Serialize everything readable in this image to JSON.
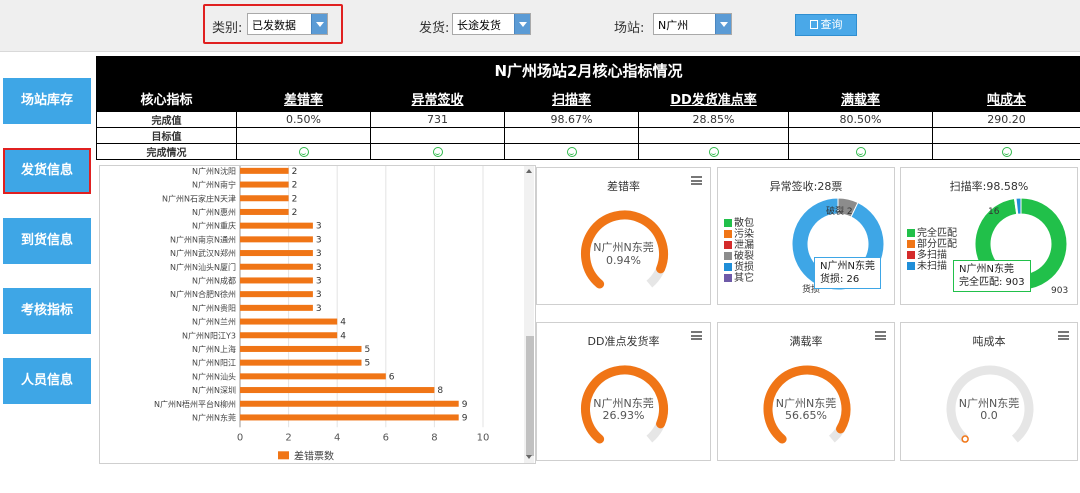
{
  "filters": {
    "category_label": "类别:",
    "category_value": "已发数据",
    "shipping_label": "发货:",
    "shipping_value": "长途发货",
    "station_label": "场站:",
    "station_value": "N广州",
    "query_label": "查询"
  },
  "nav": {
    "items": [
      {
        "label": "场站库存"
      },
      {
        "label": "发货信息"
      },
      {
        "label": "到货信息"
      },
      {
        "label": "考核指标"
      },
      {
        "label": "人员信息"
      }
    ],
    "active": "发货信息"
  },
  "kpi_table": {
    "title": "N广州场站2月核心指标情况",
    "header_label": "核心指标",
    "columns": [
      "差错率",
      "异常签收",
      "扫描率",
      "DD发货准点率",
      "满载率",
      "吨成本"
    ],
    "rows": [
      {
        "label": "完成值",
        "values": [
          "0.50%",
          "731",
          "98.67%",
          "28.85%",
          "80.50%",
          "290.20"
        ]
      },
      {
        "label": "目标值",
        "values": [
          "",
          "",
          "",
          "",
          "",
          ""
        ]
      },
      {
        "label": "完成情况",
        "values": [
          "smile-icon",
          "smile-icon",
          "smile-icon",
          "smile-icon",
          "smile-icon",
          "smile-icon"
        ]
      }
    ]
  },
  "colors": {
    "orange": "#f07516",
    "blue": "#3ea6e6",
    "green": "#21c04a",
    "gray_track": "#e6e6e6",
    "highlight_red": "#e02020"
  },
  "chart_data": [
    {
      "type": "bar",
      "orientation": "horizontal",
      "categories": [
        "N广州N沈阳",
        "N广州N南宁",
        "N广州N石家庄N天津",
        "N广州N惠州",
        "N广州N重庆",
        "N广州N南京N通州",
        "N广州N武汉N郑州",
        "N广州N汕头N厦门",
        "N广州N成都",
        "N广州N合肥N徐州",
        "N广州N贵阳",
        "N广州N兰州",
        "N广州N阳江Y3",
        "N广州N上海",
        "N广州N阳江",
        "N广州N汕头",
        "N广州N深圳",
        "N广州N梧州平台N柳州",
        "N广州N东莞"
      ],
      "series": [
        {
          "name": "差错票数",
          "values": [
            2,
            2,
            2,
            2,
            3,
            3,
            3,
            3,
            3,
            3,
            3,
            4,
            4,
            5,
            5,
            6,
            8,
            9,
            9
          ]
        }
      ],
      "xlim": [
        0,
        10
      ],
      "xticks": [
        "0",
        "2",
        "4",
        "6",
        "8",
        "10"
      ],
      "grid": true,
      "legend": "bottom"
    },
    {
      "type": "gauge",
      "title": "差错率",
      "label": "N广州N东莞",
      "value_text": "0.94%",
      "value": 0.94,
      "color": "#f07516"
    },
    {
      "type": "pie",
      "title": "异常签收:28票",
      "legend": [
        "散包",
        "污染",
        "泄漏",
        "破裂",
        "货损",
        "其它"
      ],
      "legend_colors": [
        "#21c04a",
        "#f07516",
        "#d42b2b",
        "#8c8c8c",
        "#1f8ed8",
        "#6e5aa8"
      ],
      "slices": [
        {
          "name": "破裂",
          "value": 2,
          "color": "#8c8c8c"
        },
        {
          "name": "货损",
          "value": 26,
          "color": "#3ea6e6"
        }
      ],
      "slice_labels": [
        "破裂 2",
        "货损"
      ],
      "tooltip": {
        "title": "N广州N东莞",
        "line": "货损: 26"
      }
    },
    {
      "type": "pie",
      "title": "扫描率:98.58%",
      "legend": [
        "完全匹配",
        "部分匹配",
        "多扫描",
        "未扫描"
      ],
      "legend_colors": [
        "#21c04a",
        "#f07516",
        "#d42b2b",
        "#1f8ed8"
      ],
      "slices": [
        {
          "name": "完全匹配",
          "value": 903,
          "color": "#21c04a"
        },
        {
          "name": "部分匹配",
          "value": 3,
          "color": "#f07516"
        },
        {
          "name": "多扫描",
          "value": 2,
          "color": "#d42b2b"
        },
        {
          "name": "未扫描",
          "value": 16,
          "color": "#1f8ed8"
        }
      ],
      "slice_labels": [
        "16",
        "903"
      ],
      "tooltip": {
        "title": "N广州N东莞",
        "line": "完全匹配: 903"
      }
    },
    {
      "type": "gauge",
      "title": "DD准点发货率",
      "label": "N广州N东莞",
      "value_text": "26.93%",
      "value": 26.93,
      "color": "#f07516"
    },
    {
      "type": "gauge",
      "title": "满载率",
      "label": "N广州N东莞",
      "value_text": "56.65%",
      "value": 56.65,
      "color": "#f07516"
    },
    {
      "type": "gauge",
      "title": "吨成本",
      "label": "N广州N东莞",
      "value_text": "0.0",
      "value": 0,
      "color": "#f07516"
    }
  ]
}
